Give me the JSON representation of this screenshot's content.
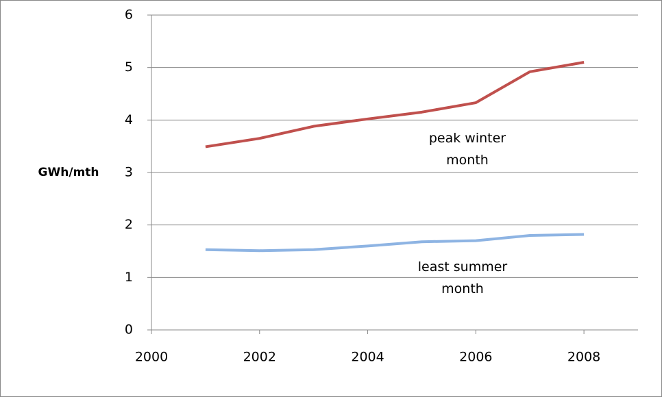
{
  "chart_data": {
    "type": "line",
    "y_label": "GWh/mth",
    "x": [
      2001,
      2002,
      2003,
      2004,
      2005,
      2006,
      2007,
      2008
    ],
    "series": [
      {
        "name": "peak winter month",
        "color": "#c0504d",
        "values": [
          3.49,
          3.65,
          3.88,
          4.02,
          4.15,
          4.33,
          4.92,
          5.1
        ]
      },
      {
        "name": "least summer month",
        "color": "#8eb4e3",
        "values": [
          1.53,
          1.51,
          1.53,
          1.6,
          1.68,
          1.7,
          1.8,
          1.82
        ]
      }
    ],
    "xlim": [
      2000,
      2009
    ],
    "xticks": [
      2000,
      2002,
      2004,
      2006,
      2008
    ],
    "ylim": [
      0,
      6
    ],
    "yticks": [
      0,
      1,
      2,
      3,
      4,
      5,
      6
    ],
    "grid": true
  }
}
